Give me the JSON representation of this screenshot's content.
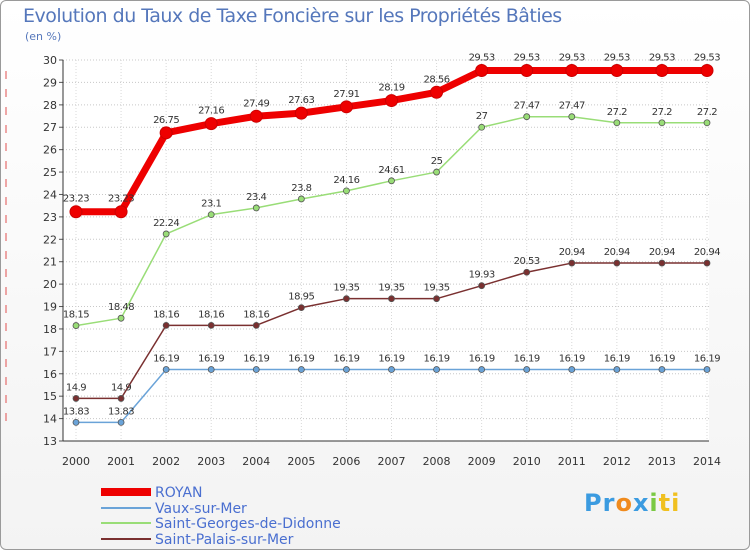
{
  "chart_data": {
    "type": "line",
    "title": "Evolution du Taux de Taxe Foncière sur les Propriétés Bâties",
    "subtitle": "(en %)",
    "xlabel": "",
    "ylabel": "",
    "categories": [
      "2000",
      "2001",
      "2002",
      "2003",
      "2004",
      "2005",
      "2006",
      "2007",
      "2008",
      "2009",
      "2010",
      "2011",
      "2012",
      "2013",
      "2014"
    ],
    "ylim": [
      13,
      30
    ],
    "yticks": [
      13,
      14,
      15,
      16,
      17,
      18,
      19,
      20,
      21,
      22,
      23,
      24,
      25,
      26,
      27,
      28,
      29,
      30
    ],
    "series": [
      {
        "name": "ROYAN",
        "color": "#ee0000",
        "values": [
          23.23,
          23.23,
          26.75,
          27.16,
          27.49,
          27.63,
          27.91,
          28.19,
          28.56,
          29.53,
          29.53,
          29.53,
          29.53,
          29.53,
          29.53
        ],
        "labels": [
          "23.23",
          "23.23",
          "26.75",
          "27.16",
          "27.49",
          "27.63",
          "27.91",
          "28.19",
          "28.56",
          "29.53",
          "29.53",
          "29.53",
          "29.53",
          "29.53",
          "29.53"
        ]
      },
      {
        "name": "Vaux-sur-Mer",
        "color": "#6aa3d8",
        "values": [
          13.83,
          13.83,
          16.19,
          16.19,
          16.19,
          16.19,
          16.19,
          16.19,
          16.19,
          16.19,
          16.19,
          16.19,
          16.19,
          16.19,
          16.19
        ],
        "labels": [
          "13.83",
          "13.83",
          "16.19",
          "16.19",
          "16.19",
          "16.19",
          "16.19",
          "16.19",
          "16.19",
          "16.19",
          "16.19",
          "16.19",
          "16.19",
          "16.19",
          "16.19"
        ]
      },
      {
        "name": "Saint-Georges-de-Didonne",
        "color": "#99dd77",
        "values": [
          18.15,
          18.48,
          22.24,
          23.1,
          23.4,
          23.8,
          24.16,
          24.61,
          25,
          27,
          27.47,
          27.47,
          27.2,
          27.2,
          27.2
        ],
        "labels": [
          "18.15",
          "18.48",
          "22.24",
          "23.1",
          "23.4",
          "23.8",
          "24.16",
          "24.61",
          "25",
          "27",
          "27.47",
          "27.47",
          "27.2",
          "27.2",
          "27.2"
        ]
      },
      {
        "name": "Saint-Palais-sur-Mer",
        "color": "#7a3030",
        "values": [
          14.9,
          14.9,
          18.16,
          18.16,
          18.16,
          18.95,
          19.35,
          19.35,
          19.35,
          19.93,
          20.53,
          20.94,
          20.94,
          20.94,
          20.94
        ],
        "labels": [
          "14.9",
          "14.9",
          "18.16",
          "18.16",
          "18.16",
          "18.95",
          "19.35",
          "19.35",
          "19.35",
          "19.93",
          "20.53",
          "20.94",
          "20.94",
          "20.94",
          "20.94"
        ]
      }
    ],
    "legend_position": "bottom-left"
  },
  "logo": {
    "parts": [
      "Pr",
      "o",
      "x",
      "i",
      "ti"
    ],
    "colors": [
      "#3b9be0",
      "#f08a1c",
      "#3b9be0",
      "#7ac943",
      "#f0c020"
    ]
  }
}
